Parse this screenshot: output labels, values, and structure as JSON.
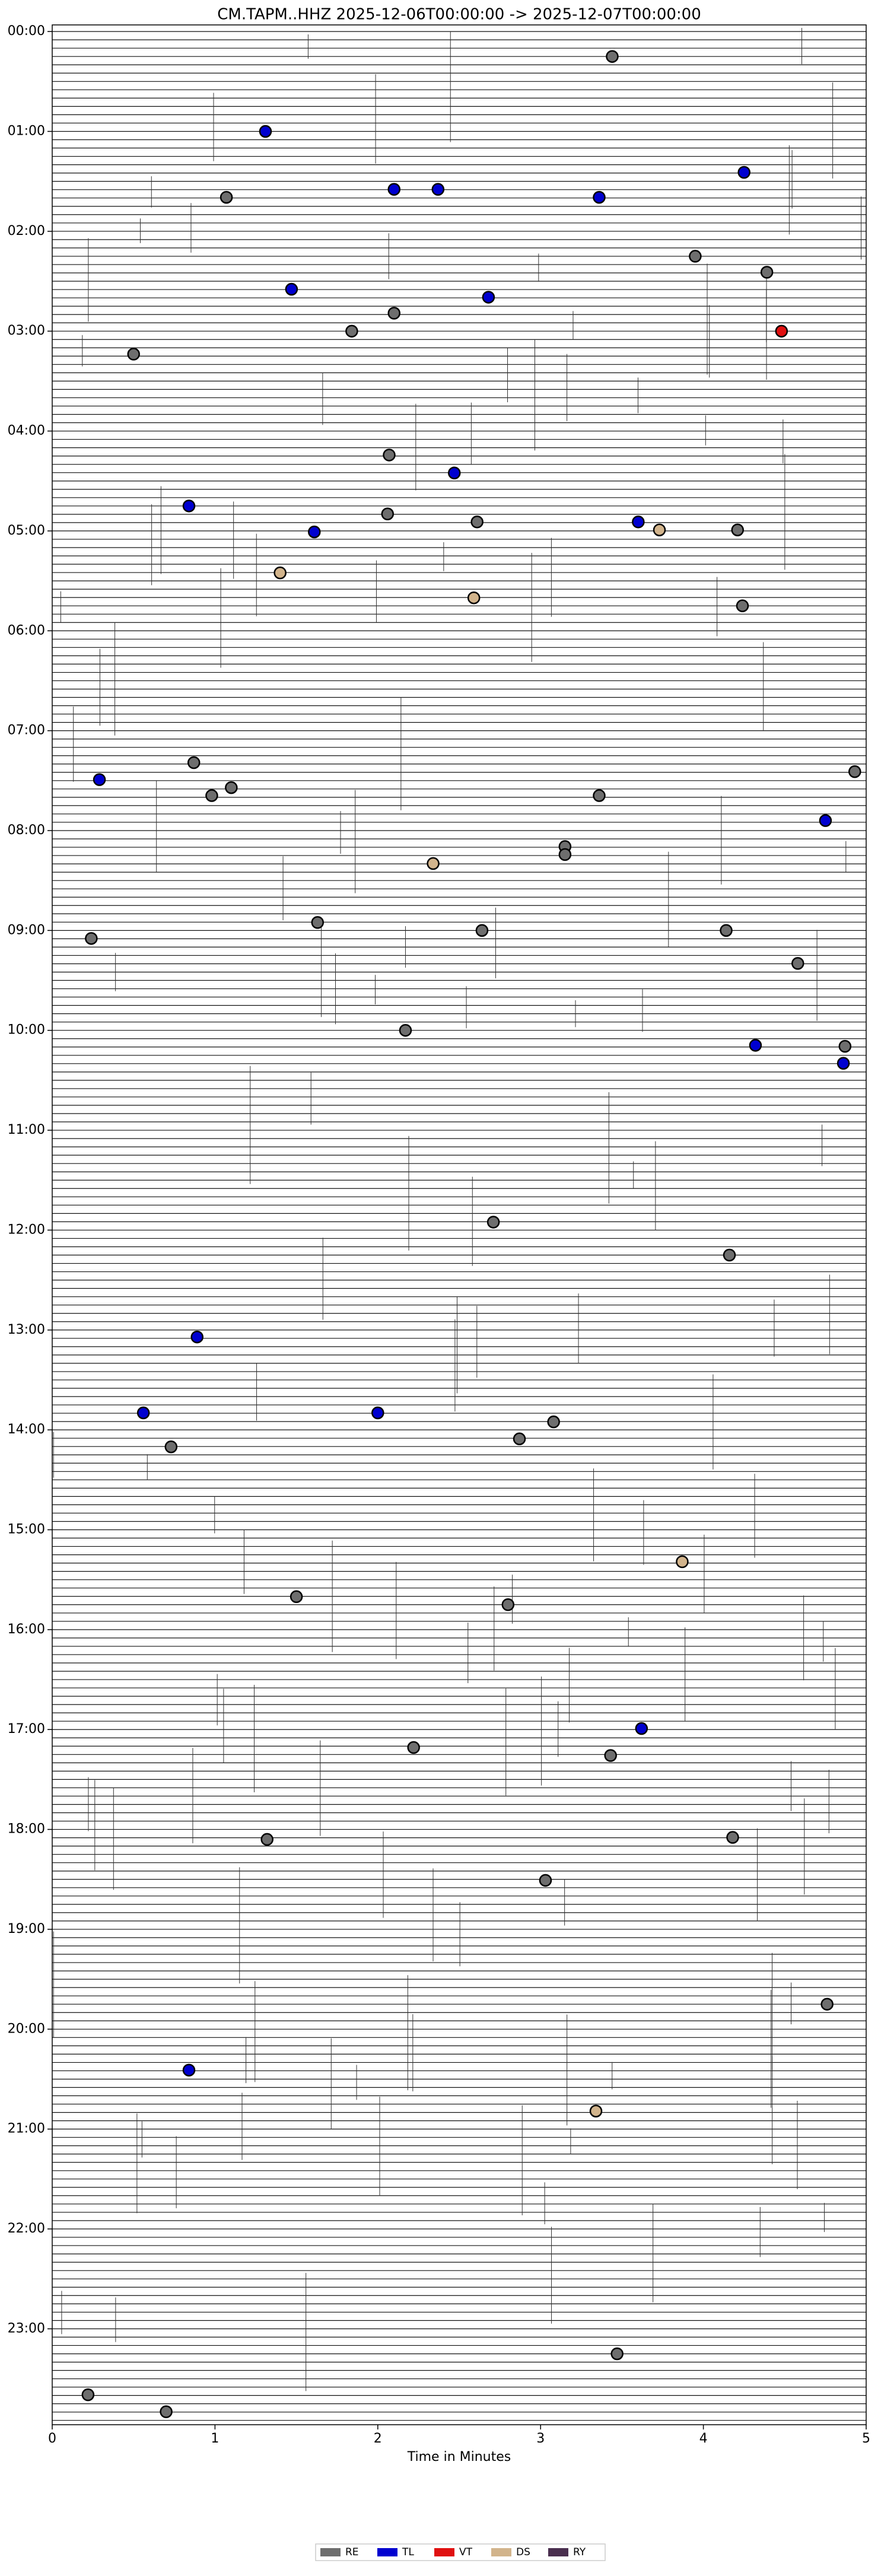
{
  "chart_data": {
    "type": "scatter",
    "title": "CM.TAPM..HHZ  2025-12-06T00:00:00 -> 2025-12-07T00:00:00",
    "xlabel": "Time in Minutes",
    "xlim": [
      0,
      5
    ],
    "xticks": [
      0,
      1,
      2,
      3,
      4,
      5
    ],
    "ylim": [
      -0.066,
      23.96
    ],
    "y_inverted": true,
    "yticks": [
      {
        "value": 0,
        "label": "00:00"
      },
      {
        "value": 1,
        "label": "01:00"
      },
      {
        "value": 2,
        "label": "02:00"
      },
      {
        "value": 3,
        "label": "03:00"
      },
      {
        "value": 4,
        "label": "04:00"
      },
      {
        "value": 5,
        "label": "05:00"
      },
      {
        "value": 6,
        "label": "06:00"
      },
      {
        "value": 7,
        "label": "07:00"
      },
      {
        "value": 8,
        "label": "08:00"
      },
      {
        "value": 9,
        "label": "09:00"
      },
      {
        "value": 10,
        "label": "10:00"
      },
      {
        "value": 11,
        "label": "11:00"
      },
      {
        "value": 12,
        "label": "12:00"
      },
      {
        "value": 13,
        "label": "13:00"
      },
      {
        "value": 14,
        "label": "14:00"
      },
      {
        "value": 15,
        "label": "15:00"
      },
      {
        "value": 16,
        "label": "16:00"
      },
      {
        "value": 17,
        "label": "17:00"
      },
      {
        "value": 18,
        "label": "18:00"
      },
      {
        "value": 19,
        "label": "19:00"
      },
      {
        "value": 20,
        "label": "20:00"
      },
      {
        "value": 21,
        "label": "21:00"
      },
      {
        "value": 22,
        "label": "22:00"
      },
      {
        "value": 23,
        "label": "23:00"
      }
    ],
    "legend": "bottom",
    "series": [
      {
        "name": "RE",
        "color": "#6e6e6e",
        "x": [
          3.44,
          1.07,
          3.95,
          4.39,
          1.84,
          2.1,
          0.5,
          2.07,
          2.06,
          2.61,
          4.21,
          4.24,
          0.87,
          0.98,
          1.1,
          4.93,
          3.36,
          3.15,
          3.15,
          1.63,
          2.64,
          0.24,
          4.14,
          4.58,
          2.17,
          4.87,
          2.71,
          4.16,
          0.73,
          2.87,
          3.08,
          1.5,
          2.8,
          2.22,
          3.43,
          1.32,
          4.18,
          3.03,
          4.76,
          3.47,
          0.22,
          0.7
        ],
        "values": [
          0.25,
          1.66,
          2.25,
          2.41,
          3.0,
          2.82,
          3.23,
          4.24,
          4.83,
          4.91,
          4.99,
          5.75,
          7.32,
          7.65,
          7.57,
          7.41,
          7.65,
          8.16,
          8.24,
          8.92,
          9.0,
          9.08,
          9.0,
          9.33,
          10.0,
          10.16,
          11.92,
          12.25,
          14.17,
          14.09,
          13.92,
          15.67,
          15.75,
          17.18,
          17.26,
          18.1,
          18.08,
          18.51,
          19.75,
          23.25,
          23.66,
          23.83
        ]
      },
      {
        "name": "TL",
        "color": "#0000d0",
        "x": [
          1.31,
          2.1,
          2.37,
          4.25,
          3.36,
          1.47,
          2.68,
          2.47,
          0.84,
          1.61,
          3.6,
          0.29,
          4.75,
          4.32,
          4.86,
          0.89,
          0.56,
          2.0,
          3.62,
          0.84
        ],
        "values": [
          1.0,
          1.58,
          1.58,
          1.41,
          1.66,
          2.58,
          2.66,
          4.42,
          4.75,
          5.01,
          4.91,
          7.49,
          7.9,
          10.15,
          10.33,
          13.07,
          13.83,
          13.83,
          16.99,
          20.41
        ]
      },
      {
        "name": "VT",
        "color": "#e01010",
        "x": [
          4.48
        ],
        "values": [
          3.0
        ]
      },
      {
        "name": "DS",
        "color": "#d2b48c",
        "x": [
          3.73,
          1.4,
          2.59,
          2.34,
          3.87,
          3.34
        ],
        "values": [
          4.99,
          5.42,
          5.67,
          8.33,
          15.32,
          20.82
        ]
      },
      {
        "name": "RY",
        "color": "#4a2f4f",
        "x": [],
        "values": []
      }
    ]
  }
}
